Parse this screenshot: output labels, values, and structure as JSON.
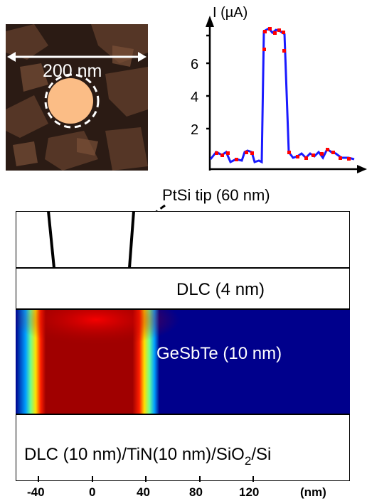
{
  "afm_image": {
    "scale_label": "200 nm"
  },
  "iv_plot": {
    "ylabel": "I (µA)",
    "y_ticks": [
      "2",
      "4",
      "6"
    ]
  },
  "tip_label": "PtSi tip (60 nm)",
  "layers": {
    "dlc_top": "DLC (4 nm)",
    "gst": "GeSbTe (10 nm)",
    "substrate_prefix": "DLC (10 nm)/TiN(10 nm)/SiO",
    "substrate_sub": "2",
    "substrate_suffix": "/Si"
  },
  "x_axis": {
    "ticks": [
      "-40",
      "0",
      "40",
      "80",
      "120"
    ],
    "unit": "(nm)"
  },
  "colors": {
    "gst_background": "#00008c",
    "gst_hot": "#8b0000",
    "trace_line": "#1a1aff",
    "trace_points": "#ff0000",
    "afm_spot": "#fbbd86"
  }
}
